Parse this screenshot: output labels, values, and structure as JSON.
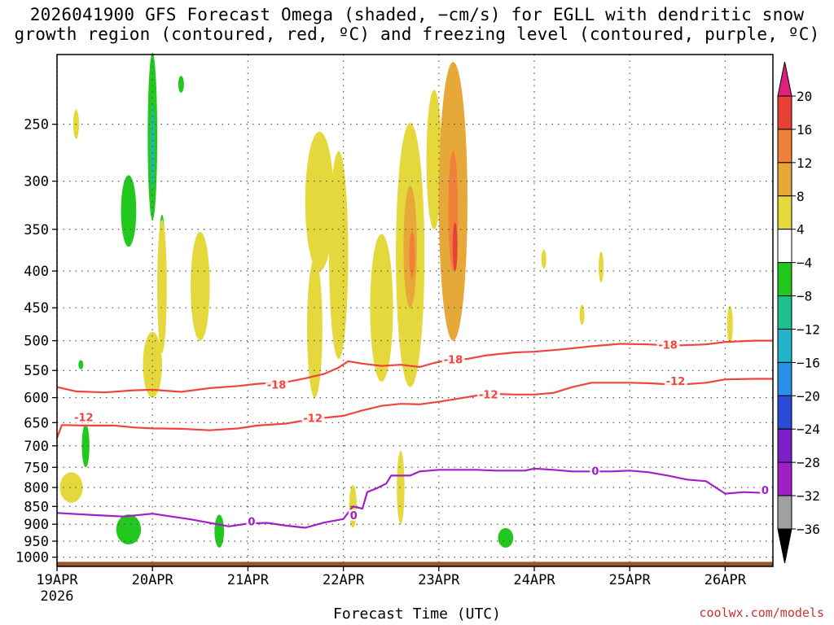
{
  "title_line1": "2026041900 GFS Forecast Omega (shaded, −cm/s) for EGLL with dendritic snow",
  "title_line2": "growth region (contoured, red, ºC) and freezing level (contoured, purple, ºC)",
  "credit": "coolwx.com/models",
  "chart_data": {
    "type": "heatmap",
    "xlabel": "Forecast Time (UTC)",
    "ylabel": "",
    "x_start_label": "2026",
    "x_ticks": [
      {
        "label": "19APR",
        "day": 0
      },
      {
        "label": "20APR",
        "day": 1
      },
      {
        "label": "21APR",
        "day": 2
      },
      {
        "label": "22APR",
        "day": 3
      },
      {
        "label": "23APR",
        "day": 4
      },
      {
        "label": "24APR",
        "day": 5
      },
      {
        "label": "25APR",
        "day": 6
      },
      {
        "label": "26APR",
        "day": 7
      }
    ],
    "x_range_days": [
      0,
      7.5
    ],
    "y_axis": "pressure_hPa_log",
    "y_range": [
      1030,
      200
    ],
    "y_ticks": [
      250,
      300,
      350,
      400,
      450,
      500,
      550,
      600,
      650,
      700,
      750,
      800,
      850,
      900,
      950,
      1000
    ],
    "grid": true,
    "colorbar": {
      "labels": [
        "20",
        "16",
        "12",
        "8",
        "4",
        "−4",
        "−8",
        "−12",
        "−16",
        "−20",
        "−24",
        "−28",
        "−32",
        "−36"
      ],
      "segments": [
        {
          "range": [
            16,
            20
          ],
          "color": "#e8413a"
        },
        {
          "range": [
            12,
            16
          ],
          "color": "#f0803a"
        },
        {
          "range": [
            8,
            12
          ],
          "color": "#e6a838"
        },
        {
          "range": [
            4,
            8
          ],
          "color": "#e5d83c"
        },
        {
          "range": [
            -4,
            4
          ],
          "color": "#ffffff"
        },
        {
          "range": [
            -8,
            -4
          ],
          "color": "#22c81e"
        },
        {
          "range": [
            -12,
            -8
          ],
          "color": "#1fbe8c"
        },
        {
          "range": [
            -16,
            -12
          ],
          "color": "#22b4c8"
        },
        {
          "range": [
            -20,
            -16
          ],
          "color": "#2890e6"
        },
        {
          "range": [
            -24,
            -20
          ],
          "color": "#2a4ad8"
        },
        {
          "range": [
            -28,
            -24
          ],
          "color": "#7a22c8"
        },
        {
          "range": [
            -32,
            -28
          ],
          "color": "#a020c8"
        },
        {
          "range": [
            -36,
            -32
          ],
          "color": "#a0a0a0"
        }
      ],
      "top_arrow_color": "#e0207a",
      "bottom_arrow_color": "#000000"
    },
    "series": [
      {
        "name": "-18",
        "color": "#f0453e",
        "points": [
          [
            0,
            580
          ],
          [
            0.2,
            588
          ],
          [
            0.5,
            590
          ],
          [
            0.8,
            586
          ],
          [
            1.0,
            585
          ],
          [
            1.3,
            589
          ],
          [
            1.6,
            582
          ],
          [
            1.9,
            578
          ],
          [
            2.1,
            574
          ],
          [
            2.4,
            571
          ],
          [
            2.6,
            564
          ],
          [
            2.8,
            556
          ],
          [
            2.95,
            545
          ],
          [
            3.05,
            534
          ],
          [
            3.2,
            538
          ],
          [
            3.4,
            542
          ],
          [
            3.6,
            540
          ],
          [
            3.8,
            544
          ],
          [
            3.95,
            537
          ],
          [
            4.1,
            532
          ],
          [
            4.3,
            530
          ],
          [
            4.5,
            524
          ],
          [
            4.8,
            519
          ],
          [
            5.0,
            518
          ],
          [
            5.3,
            514
          ],
          [
            5.6,
            509
          ],
          [
            5.9,
            505
          ],
          [
            6.2,
            506
          ],
          [
            6.45,
            508
          ],
          [
            6.8,
            506
          ],
          [
            7.0,
            502
          ],
          [
            7.3,
            500
          ],
          [
            7.5,
            500
          ]
        ],
        "labels": [
          [
            2.2,
            577
          ],
          [
            4.05,
            532
          ],
          [
            6.3,
            508
          ]
        ]
      },
      {
        "name": "-12",
        "color": "#f0453e",
        "points": [
          [
            0,
            683
          ],
          [
            0.05,
            655
          ],
          [
            0.3,
            656
          ],
          [
            0.6,
            656
          ],
          [
            0.8,
            660
          ],
          [
            1.0,
            662
          ],
          [
            1.3,
            663
          ],
          [
            1.6,
            666
          ],
          [
            1.9,
            662
          ],
          [
            2.1,
            656
          ],
          [
            2.4,
            652
          ],
          [
            2.6,
            645
          ],
          [
            2.8,
            640
          ],
          [
            3.0,
            636
          ],
          [
            3.2,
            625
          ],
          [
            3.4,
            616
          ],
          [
            3.6,
            612
          ],
          [
            3.8,
            613
          ],
          [
            4.0,
            608
          ],
          [
            4.2,
            602
          ],
          [
            4.4,
            596
          ],
          [
            4.6,
            593
          ],
          [
            4.8,
            594
          ],
          [
            5.0,
            594
          ],
          [
            5.2,
            591
          ],
          [
            5.4,
            580
          ],
          [
            5.6,
            572
          ],
          [
            5.8,
            572
          ],
          [
            6.0,
            572
          ],
          [
            6.2,
            573
          ],
          [
            6.5,
            576
          ],
          [
            6.8,
            572
          ],
          [
            7.0,
            566
          ],
          [
            7.3,
            565
          ],
          [
            7.5,
            565
          ]
        ],
        "labels": [
          [
            0.18,
            640
          ],
          [
            2.58,
            642
          ],
          [
            4.42,
            595
          ],
          [
            6.38,
            570
          ]
        ]
      },
      {
        "name": "0",
        "color": "#a020c8",
        "points": [
          [
            0,
            868
          ],
          [
            0.4,
            874
          ],
          [
            0.7,
            878
          ],
          [
            1.0,
            870
          ],
          [
            1.2,
            878
          ],
          [
            1.4,
            886
          ],
          [
            1.6,
            896
          ],
          [
            1.8,
            906
          ],
          [
            2.0,
            898
          ],
          [
            2.2,
            896
          ],
          [
            2.4,
            904
          ],
          [
            2.6,
            910
          ],
          [
            2.8,
            895
          ],
          [
            3.0,
            885
          ],
          [
            3.1,
            850
          ],
          [
            3.2,
            856
          ],
          [
            3.25,
            812
          ],
          [
            3.35,
            802
          ],
          [
            3.45,
            790
          ],
          [
            3.5,
            770
          ],
          [
            3.7,
            770
          ],
          [
            3.8,
            760
          ],
          [
            4.0,
            756
          ],
          [
            4.4,
            756
          ],
          [
            4.6,
            758
          ],
          [
            4.9,
            758
          ],
          [
            5.0,
            753
          ],
          [
            5.2,
            756
          ],
          [
            5.4,
            760
          ],
          [
            5.8,
            760
          ],
          [
            6.0,
            758
          ],
          [
            6.2,
            762
          ],
          [
            6.4,
            770
          ],
          [
            6.6,
            780
          ],
          [
            6.8,
            784
          ],
          [
            7.0,
            816
          ],
          [
            7.2,
            812
          ],
          [
            7.4,
            814
          ]
        ],
        "labels": [
          [
            2.0,
            894
          ],
          [
            3.07,
            876
          ],
          [
            5.6,
            760
          ],
          [
            7.38,
            808
          ]
        ]
      }
    ],
    "omega_regions": [
      {
        "value": -6,
        "day": 1.0,
        "p": 260,
        "dd": 0.05,
        "dp": 80
      },
      {
        "value": -10,
        "day": 1.0,
        "p": 270,
        "dd": 0.02,
        "dp": 40
      },
      {
        "value": -6,
        "day": 0.75,
        "p": 330,
        "dd": 0.08,
        "dp": 40
      },
      {
        "value": -6,
        "day": 1.1,
        "p": 370,
        "dd": 0.03,
        "dp": 40
      },
      {
        "value": -6,
        "day": 1.3,
        "p": 220,
        "dd": 0.03,
        "dp": 6
      },
      {
        "value": -6,
        "day": 0.3,
        "p": 700,
        "dd": 0.04,
        "dp": 50
      },
      {
        "value": -6,
        "day": 0.75,
        "p": 915,
        "dd": 0.13,
        "dp": 45
      },
      {
        "value": -6,
        "day": 1.7,
        "p": 920,
        "dd": 0.05,
        "dp": 50
      },
      {
        "value": -6,
        "day": 4.7,
        "p": 940,
        "dd": 0.08,
        "dp": 30
      },
      {
        "value": -6,
        "day": 0.25,
        "p": 540,
        "dd": 0.01,
        "dp": 8
      },
      {
        "value": 5,
        "day": 0.15,
        "p": 800,
        "dd": 0.12,
        "dp": 40
      },
      {
        "value": 5,
        "day": 1.0,
        "p": 540,
        "dd": 0.1,
        "dp": 60
      },
      {
        "value": 6,
        "day": 1.1,
        "p": 420,
        "dd": 0.05,
        "dp": 100
      },
      {
        "value": 5,
        "day": 1.5,
        "p": 420,
        "dd": 0.1,
        "dp": 80
      },
      {
        "value": 5,
        "day": 2.75,
        "p": 320,
        "dd": 0.15,
        "dp": 80
      },
      {
        "value": 5,
        "day": 2.7,
        "p": 480,
        "dd": 0.08,
        "dp": 120
      },
      {
        "value": 5,
        "day": 2.95,
        "p": 380,
        "dd": 0.1,
        "dp": 150
      },
      {
        "value": 6,
        "day": 3.4,
        "p": 450,
        "dd": 0.12,
        "dp": 120
      },
      {
        "value": 6,
        "day": 3.7,
        "p": 380,
        "dd": 0.15,
        "dp": 200
      },
      {
        "value": 10,
        "day": 3.7,
        "p": 370,
        "dd": 0.07,
        "dp": 80
      },
      {
        "value": 14,
        "day": 3.72,
        "p": 380,
        "dd": 0.03,
        "dp": 30
      },
      {
        "value": 5,
        "day": 3.95,
        "p": 280,
        "dd": 0.08,
        "dp": 70
      },
      {
        "value": 8,
        "day": 4.15,
        "p": 320,
        "dd": 0.15,
        "dp": 180
      },
      {
        "value": 12,
        "day": 4.15,
        "p": 330,
        "dd": 0.05,
        "dp": 70
      },
      {
        "value": 17,
        "day": 4.17,
        "p": 370,
        "dd": 0.02,
        "dp": 30
      },
      {
        "value": 5,
        "day": 3.6,
        "p": 800,
        "dd": 0.04,
        "dp": 100
      },
      {
        "value": 5,
        "day": 3.1,
        "p": 850,
        "dd": 0.04,
        "dp": 60
      },
      {
        "value": 5,
        "day": 0.2,
        "p": 250,
        "dd": 0.03,
        "dp": 12
      },
      {
        "value": 5,
        "day": 5.1,
        "p": 385,
        "dd": 0.02,
        "dp": 12
      },
      {
        "value": 5,
        "day": 5.5,
        "p": 460,
        "dd": 0.02,
        "dp": 15
      },
      {
        "value": 5,
        "day": 5.7,
        "p": 395,
        "dd": 0.02,
        "dp": 20
      },
      {
        "value": 5,
        "day": 7.05,
        "p": 475,
        "dd": 0.03,
        "dp": 30
      }
    ]
  }
}
